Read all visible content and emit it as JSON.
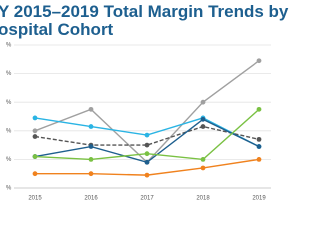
{
  "chart_data": {
    "type": "line",
    "title_lines": [
      "Y 2015–2019 Total Margin Trends by",
      "ospital Cohort"
    ],
    "categories": [
      "2015",
      "2016",
      "2017",
      "2018",
      "2019"
    ],
    "series": [
      {
        "color": "#a0a0a0",
        "dash": false,
        "values": [
          4.0,
          5.5,
          1.8,
          6.0,
          8.9
        ]
      },
      {
        "color": "#2ab4e4",
        "dash": false,
        "values": [
          4.9,
          4.3,
          3.7,
          4.9,
          2.9
        ]
      },
      {
        "color": "#555555",
        "dash": true,
        "values": [
          3.6,
          3.0,
          3.0,
          4.3,
          3.4
        ]
      },
      {
        "color": "#1e5f8e",
        "dash": false,
        "values": [
          2.2,
          2.9,
          1.8,
          4.8,
          2.9
        ]
      },
      {
        "color": "#7ac143",
        "dash": false,
        "values": [
          2.2,
          2.0,
          2.4,
          2.0,
          5.5
        ]
      },
      {
        "color": "#f0821e",
        "dash": false,
        "values": [
          1.0,
          1.0,
          0.9,
          1.4,
          2.0
        ]
      }
    ],
    "ylim": [
      0,
      10
    ],
    "yticks": [
      {
        "value": 0,
        "label": "%"
      },
      {
        "value": 2,
        "label": "%"
      },
      {
        "value": 4,
        "label": "%"
      },
      {
        "value": 6,
        "label": "%"
      },
      {
        "value": 8,
        "label": "%"
      },
      {
        "value": 10,
        "label": "%"
      }
    ],
    "grid": true
  }
}
